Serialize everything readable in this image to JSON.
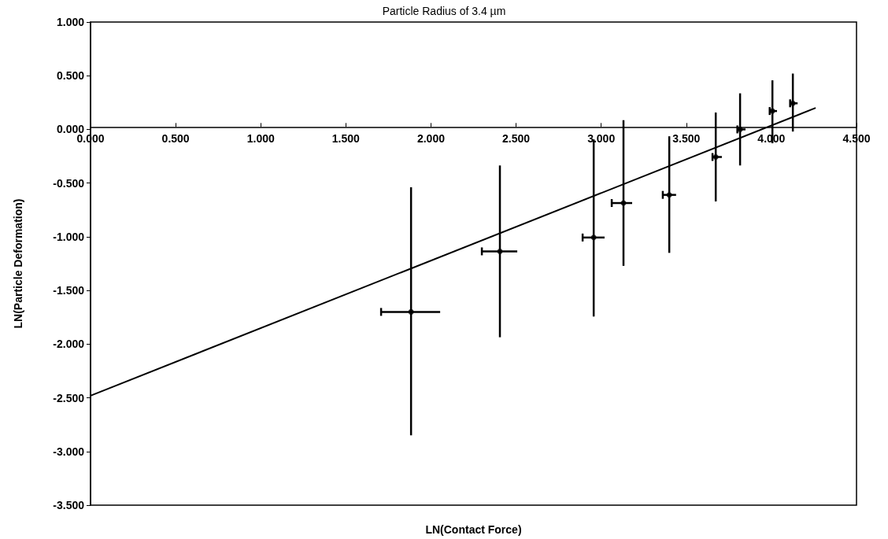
{
  "chart_data": {
    "type": "scatter",
    "title": "Particle Radius of 3.4 µm",
    "xlabel": "LN(Contact Force)",
    "ylabel": "LN(Particle Deformation)",
    "series": [
      {
        "color": "#000000",
        "x": [
          1.883,
          2.405,
          2.956,
          3.131,
          3.4,
          3.673,
          3.816,
          4.006,
          4.126
        ],
        "values": [
          -1.7,
          -1.136,
          -1.007,
          -0.686,
          -0.61,
          -0.257,
          0.0,
          0.171,
          0.243
        ],
        "errors": [
          [
            -2.85,
            -0.54
          ],
          [
            -1.936,
            -0.336
          ],
          [
            -1.743,
            -0.093
          ],
          [
            -1.271,
            0.086
          ],
          [
            -1.15,
            -0.064
          ],
          [
            -0.671,
            0.157
          ],
          [
            -0.336,
            0.336
          ],
          [
            -0.129,
            0.457
          ],
          [
            -0.02,
            0.52
          ]
        ],
        "xerrors": [
          [
            1.707,
            2.054
          ],
          [
            2.299,
            2.507
          ],
          [
            2.891,
            3.02
          ],
          [
            3.062,
            3.182
          ],
          [
            3.362,
            3.44
          ],
          [
            3.654,
            3.709
          ],
          [
            3.8,
            3.848
          ],
          [
            3.99,
            4.033
          ],
          [
            4.11,
            4.154
          ]
        ]
      },
      {
        "type": "line",
        "color": "#000000",
        "marker": "none",
        "x": [
          0,
          4.26
        ],
        "values": [
          -2.48,
          0.2
        ]
      }
    ],
    "xlim": [
      0,
      4.5
    ],
    "xticks": [
      {
        "value": 0,
        "label": "0.000"
      },
      {
        "value": 0.5,
        "label": "0.500"
      },
      {
        "value": 1,
        "label": "1.000"
      },
      {
        "value": 1.5,
        "label": "1.500"
      },
      {
        "value": 2,
        "label": "2.000"
      },
      {
        "value": 2.5,
        "label": "2.500"
      },
      {
        "value": 3,
        "label": "3.000"
      },
      {
        "value": 3.5,
        "label": "3.500"
      },
      {
        "value": 4,
        "label": "4.000"
      },
      {
        "value": 4.5,
        "label": "4.500"
      }
    ],
    "ylim": [
      -3.5,
      1
    ],
    "yticks": [
      {
        "value": -3.5,
        "label": "-3.500"
      },
      {
        "value": -3,
        "label": "-3.000"
      },
      {
        "value": -2.5,
        "label": "-2.500"
      },
      {
        "value": -2,
        "label": "-2.000"
      },
      {
        "value": -1.5,
        "label": "-1.500"
      },
      {
        "value": -1,
        "label": "-1.000"
      },
      {
        "value": -0.5,
        "label": "-0.500"
      },
      {
        "value": 0,
        "label": "0.000"
      },
      {
        "value": 0.5,
        "label": "0.500"
      },
      {
        "value": 1,
        "label": "1.000"
      }
    ],
    "marker": "circle"
  }
}
